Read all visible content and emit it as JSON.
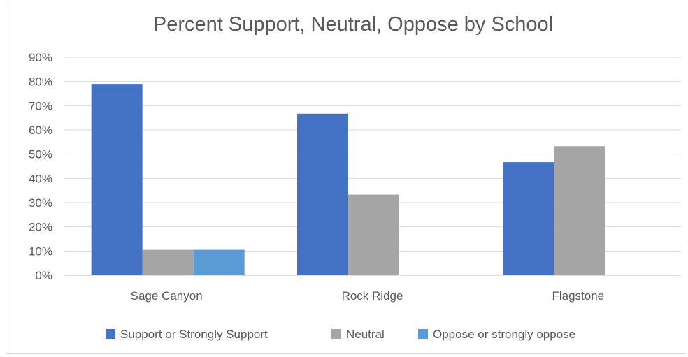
{
  "chart_data": {
    "type": "bar",
    "title": "Percent Support, Neutral, Oppose by School",
    "categories": [
      "Sage Canyon",
      "Rock Ridge",
      "Flagstone"
    ],
    "series": [
      {
        "name": "Support or Strongly Support",
        "values": [
          0.79,
          0.667,
          0.467
        ],
        "color": "#4472C4"
      },
      {
        "name": "Neutral",
        "values": [
          0.105,
          0.333,
          0.533
        ],
        "color": "#A5A5A5"
      },
      {
        "name": "Oppose or strongly oppose",
        "values": [
          0.105,
          0,
          0
        ],
        "color": "#5B9BD5"
      }
    ],
    "ylim": [
      0,
      0.9
    ],
    "yticks": [
      "0%",
      "10%",
      "20%",
      "30%",
      "40%",
      "50%",
      "60%",
      "70%",
      "80%",
      "90%"
    ],
    "grid": true,
    "legend": "bottom"
  }
}
